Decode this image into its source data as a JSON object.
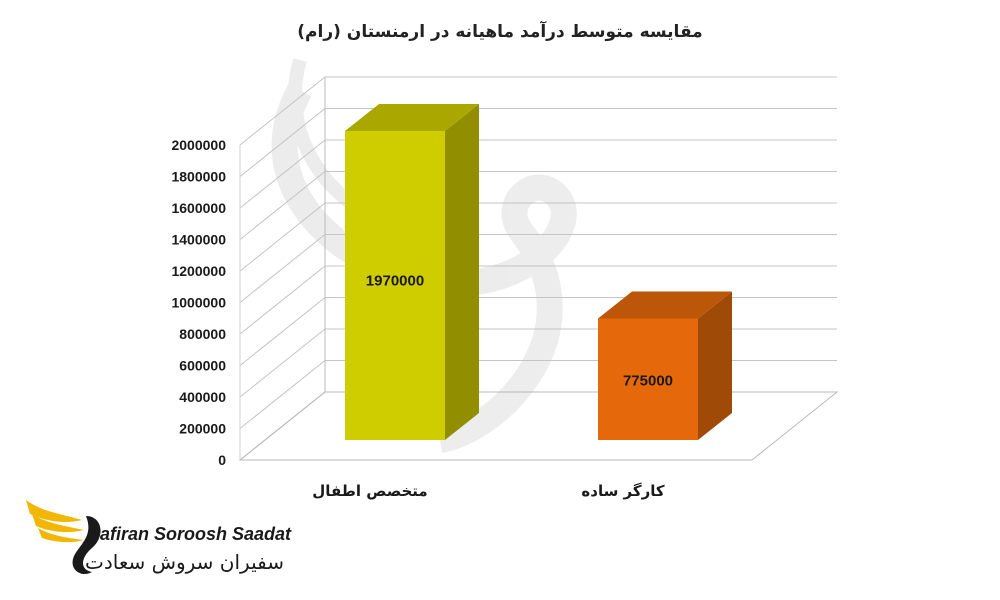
{
  "chart_data": {
    "type": "bar",
    "title": "مقایسه متوسط درآمد ماهیانه در ارمنستان (رام)",
    "categories": [
      "متخصص اطفال",
      "کارگر ساده"
    ],
    "values": [
      1970000,
      775000
    ],
    "data_labels": [
      "1970000",
      "775000"
    ],
    "bar_colors": [
      "#cfcc00",
      "#e5690a"
    ],
    "ylim": [
      0,
      2000000
    ],
    "yticks": [
      "0",
      "200000",
      "400000",
      "600000",
      "800000",
      "1000000",
      "1200000",
      "1400000",
      "1600000",
      "1800000",
      "2000000"
    ],
    "xlabel": "",
    "ylabel": "",
    "grid": true,
    "style": "3d"
  },
  "branding": {
    "name_en": "Safiran Soroosh Saadat",
    "name_fa": "سفیران سروش سعادت",
    "colors": {
      "gold": "#f2b705",
      "dark": "#1a1a1a"
    }
  }
}
